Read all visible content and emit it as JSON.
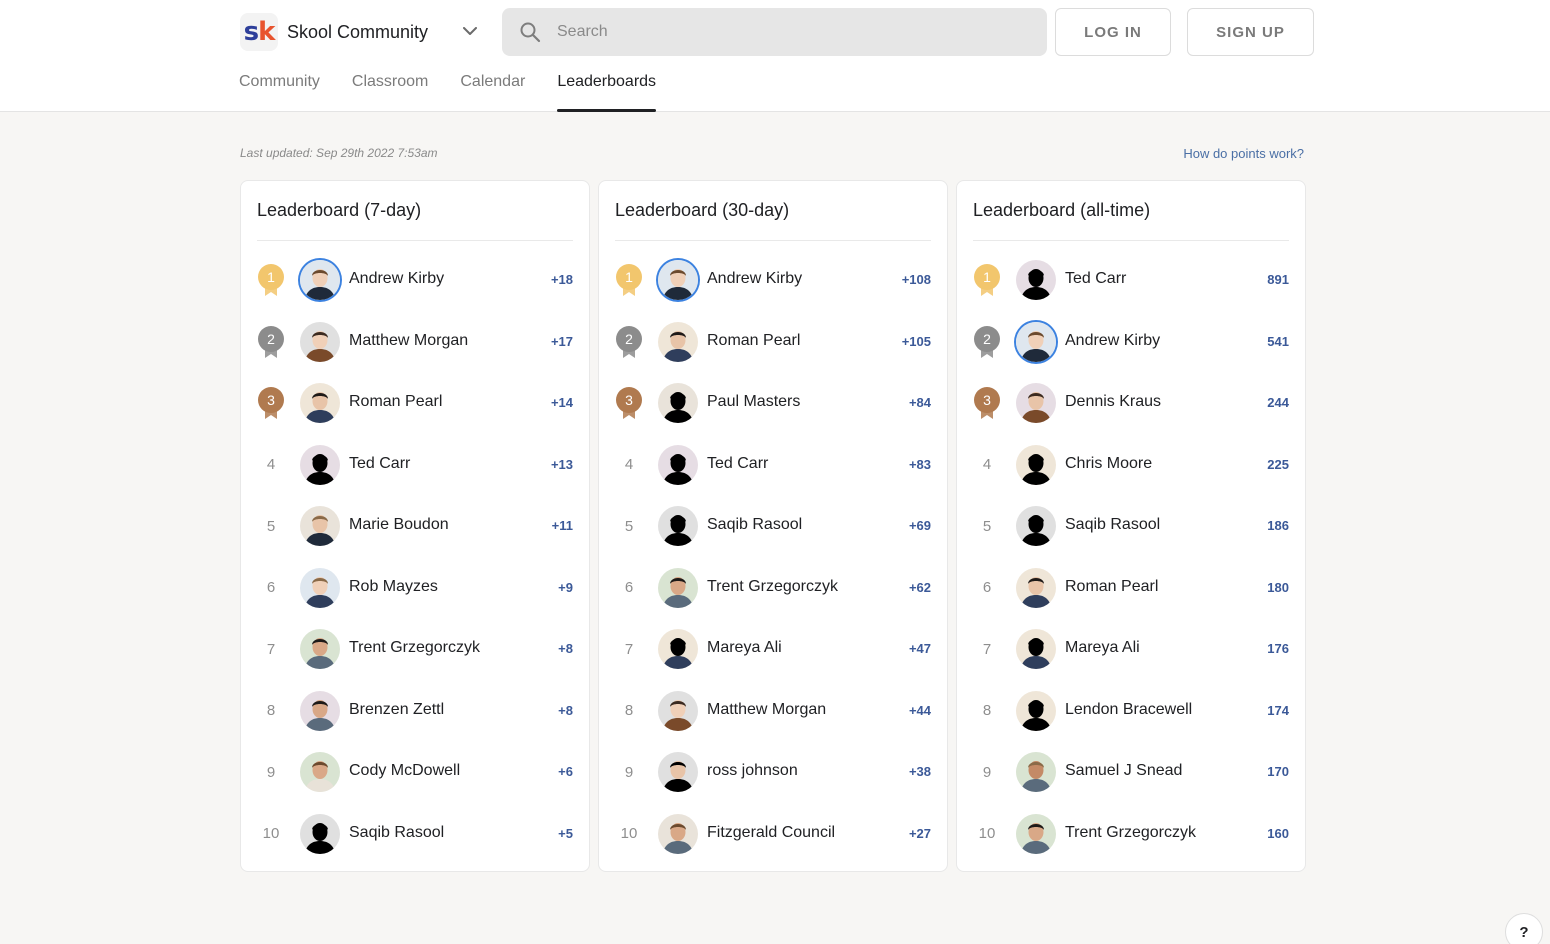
{
  "header": {
    "brand": {
      "logo_s": "s",
      "logo_k": "k",
      "name": "Skool Community"
    },
    "search_placeholder": "Search",
    "login_label": "LOG IN",
    "signup_label": "SIGN UP",
    "nav": [
      "Community",
      "Classroom",
      "Calendar",
      "Leaderboards"
    ],
    "active_nav": "Leaderboards"
  },
  "meta": {
    "last_updated": "Last updated: Sep 29th 2022 7:53am",
    "points_link": "How do points work?"
  },
  "colors": {
    "gold": "#f2c66d",
    "silver": "#8c8c8c",
    "bronze": "#b07a4f",
    "points": "#3b5998",
    "ring": "#3c82e0"
  },
  "leaderboards": [
    {
      "title": "Leaderboard (7-day)",
      "entries": [
        {
          "rank": "1",
          "name": "Andrew Kirby",
          "points": "+18"
        },
        {
          "rank": "2",
          "name": "Matthew Morgan",
          "points": "+17"
        },
        {
          "rank": "3",
          "name": "Roman Pearl",
          "points": "+14"
        },
        {
          "rank": "4",
          "name": "Ted Carr",
          "points": "+13"
        },
        {
          "rank": "5",
          "name": "Marie Boudon",
          "points": "+11"
        },
        {
          "rank": "6",
          "name": "Rob Mayzes",
          "points": "+9"
        },
        {
          "rank": "7",
          "name": "Trent Grzegorczyk",
          "points": "+8"
        },
        {
          "rank": "8",
          "name": "Brenzen Zettl",
          "points": "+8"
        },
        {
          "rank": "9",
          "name": "Cody McDowell",
          "points": "+6"
        },
        {
          "rank": "10",
          "name": "Saqib Rasool",
          "points": "+5"
        }
      ]
    },
    {
      "title": "Leaderboard (30-day)",
      "entries": [
        {
          "rank": "1",
          "name": "Andrew Kirby",
          "points": "+108"
        },
        {
          "rank": "2",
          "name": "Roman Pearl",
          "points": "+105"
        },
        {
          "rank": "3",
          "name": "Paul Masters",
          "points": "+84"
        },
        {
          "rank": "4",
          "name": "Ted Carr",
          "points": "+83"
        },
        {
          "rank": "5",
          "name": "Saqib Rasool",
          "points": "+69"
        },
        {
          "rank": "6",
          "name": "Trent Grzegorczyk",
          "points": "+62"
        },
        {
          "rank": "7",
          "name": "Mareya Ali",
          "points": "+47"
        },
        {
          "rank": "8",
          "name": "Matthew Morgan",
          "points": "+44"
        },
        {
          "rank": "9",
          "name": "ross johnson",
          "points": "+38"
        },
        {
          "rank": "10",
          "name": "Fitzgerald Council",
          "points": "+27"
        }
      ]
    },
    {
      "title": "Leaderboard (all-time)",
      "entries": [
        {
          "rank": "1",
          "name": "Ted Carr",
          "points": "891"
        },
        {
          "rank": "2",
          "name": "Andrew Kirby",
          "points": "541"
        },
        {
          "rank": "3",
          "name": "Dennis Kraus",
          "points": "244"
        },
        {
          "rank": "4",
          "name": "Chris Moore",
          "points": "225"
        },
        {
          "rank": "5",
          "name": "Saqib Rasool",
          "points": "186"
        },
        {
          "rank": "6",
          "name": "Roman Pearl",
          "points": "180"
        },
        {
          "rank": "7",
          "name": "Mareya Ali",
          "points": "176"
        },
        {
          "rank": "8",
          "name": "Lendon Bracewell",
          "points": "174"
        },
        {
          "rank": "9",
          "name": "Samuel J Snead",
          "points": "170"
        },
        {
          "rank": "10",
          "name": "Trent Grzegorczyk",
          "points": "160"
        }
      ]
    }
  ],
  "help_label": "?"
}
